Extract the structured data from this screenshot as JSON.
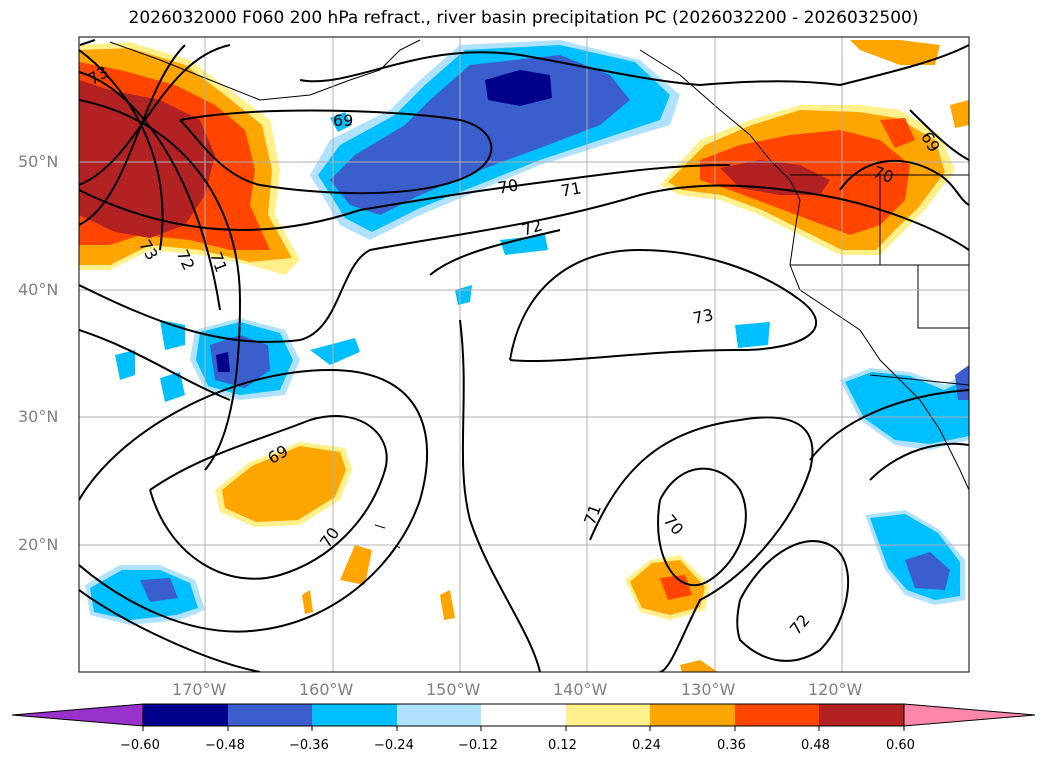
{
  "title": "2026032000 F060 200 hPa refract., river basin precipitation PC (2026032200 - 2026032500)",
  "lat_labels": [
    "50°N",
    "40°N",
    "30°N",
    "20°N"
  ],
  "lon_labels": [
    "170°W",
    "160°W",
    "150°W",
    "140°W",
    "130°W",
    "120°W"
  ],
  "contour_labels": [
    "73",
    "69",
    "70",
    "71",
    "72",
    "73",
    "72",
    "71",
    "73",
    "69",
    "70",
    "70",
    "71",
    "70",
    "72",
    "69",
    "70"
  ],
  "colorbar": {
    "ticks": [
      "−0.60",
      "−0.48",
      "−0.36",
      "−0.24",
      "−0.12",
      "0.12",
      "0.24",
      "0.36",
      "0.48",
      "0.60"
    ],
    "colors": [
      "#9932cc",
      "#00008b",
      "#3a5fcd",
      "#00bfff",
      "#b0e2ff",
      "#ffffff",
      "#fff08c",
      "#ffa500",
      "#ff4500",
      "#b22222",
      "#ff88aa"
    ]
  },
  "colors": {
    "neg_strong": "#00008b",
    "neg_mid": "#3a5fcd",
    "neg_light": "#00bfff",
    "neg_pale": "#b0e2ff",
    "pos_pale": "#fff08c",
    "pos_light": "#ffa500",
    "pos_mid": "#ff4500",
    "pos_strong": "#b22222"
  }
}
